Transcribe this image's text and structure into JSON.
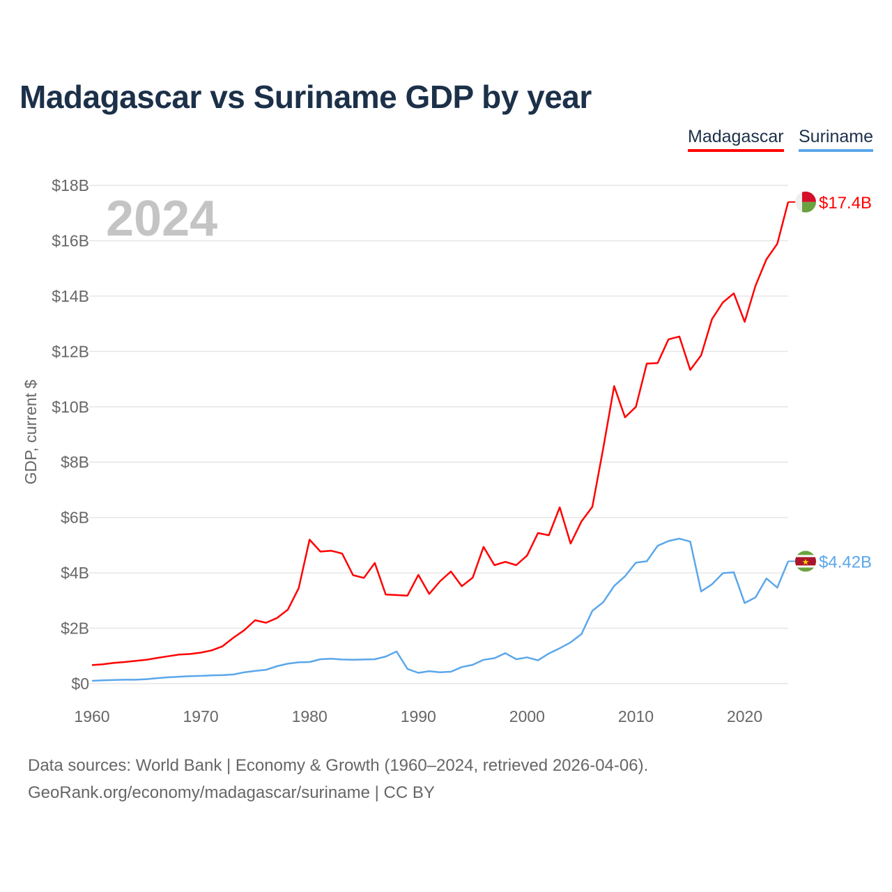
{
  "chart_data": {
    "type": "line",
    "title": "Madagascar vs Suriname GDP by year",
    "ylabel": "GDP, current $",
    "xlabel": "",
    "year_watermark": "2024",
    "xlim": [
      1960,
      2024
    ],
    "ylim": [
      0,
      18
    ],
    "x_ticks": [
      1960,
      1970,
      1980,
      1990,
      2000,
      2010,
      2020
    ],
    "x_tick_labels": [
      "1960",
      "1970",
      "1980",
      "1990",
      "2000",
      "2010",
      "2020"
    ],
    "y_ticks": [
      0,
      2,
      4,
      6,
      8,
      10,
      12,
      14,
      16,
      18
    ],
    "y_tick_labels": [
      "$0",
      "$2B",
      "$4B",
      "$6B",
      "$8B",
      "$10B",
      "$12B",
      "$14B",
      "$16B",
      "$18B"
    ],
    "grid": true,
    "legend_position": "top-right",
    "unit": "billion USD",
    "series": [
      {
        "name": "Madagascar",
        "color": "#ff0000",
        "end_label": "$17.4B",
        "values": [
          0.67,
          0.7,
          0.75,
          0.78,
          0.82,
          0.86,
          0.93,
          0.99,
          1.05,
          1.07,
          1.12,
          1.2,
          1.35,
          1.66,
          1.93,
          2.29,
          2.2,
          2.37,
          2.67,
          3.45,
          5.2,
          4.77,
          4.8,
          4.7,
          3.92,
          3.82,
          4.36,
          3.22,
          3.2,
          3.18,
          3.93,
          3.24,
          3.7,
          4.05,
          3.52,
          3.83,
          4.94,
          4.28,
          4.4,
          4.28,
          4.63,
          5.44,
          5.36,
          6.37,
          5.06,
          5.86,
          6.39,
          8.5,
          10.75,
          9.62,
          10.0,
          11.56,
          11.58,
          12.44,
          12.54,
          11.33,
          11.86,
          13.17,
          13.77,
          14.1,
          13.07,
          14.38,
          15.33,
          15.89,
          17.4
        ]
      },
      {
        "name": "Suriname",
        "color": "#5ba7eb",
        "end_label": "$4.42B",
        "values": [
          0.1,
          0.12,
          0.13,
          0.14,
          0.14,
          0.16,
          0.2,
          0.23,
          0.25,
          0.27,
          0.28,
          0.3,
          0.31,
          0.33,
          0.41,
          0.46,
          0.5,
          0.63,
          0.72,
          0.77,
          0.78,
          0.88,
          0.9,
          0.87,
          0.86,
          0.87,
          0.88,
          0.98,
          1.16,
          0.53,
          0.39,
          0.45,
          0.41,
          0.43,
          0.6,
          0.68,
          0.86,
          0.92,
          1.1,
          0.88,
          0.95,
          0.84,
          1.09,
          1.28,
          1.49,
          1.79,
          2.63,
          2.94,
          3.53,
          3.88,
          4.37,
          4.42,
          4.98,
          5.15,
          5.24,
          5.13,
          3.33,
          3.59,
          3.99,
          4.02,
          2.91,
          3.12,
          3.8,
          3.47,
          4.42
        ]
      }
    ]
  },
  "footer": {
    "line1": "Data sources: World Bank | Economy & Growth (1960–2024, retrieved 2026-04-06).",
    "line2": "GeoRank.org/economy/madagascar/suriname | CC BY"
  }
}
